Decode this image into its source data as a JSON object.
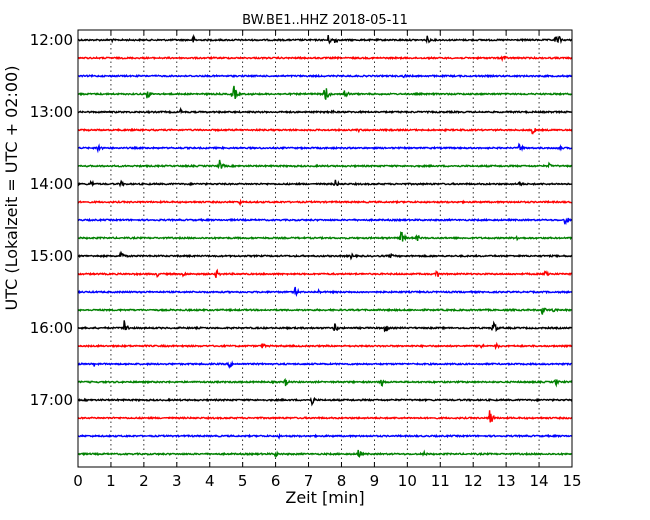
{
  "chart_data": {
    "type": "line",
    "title": "BW.BE1..HHZ 2018-05-11",
    "xlabel": "Zeit  [min]",
    "ylabel": "UTC (Lokalzeit = UTC + 02:00)",
    "xlim": [
      0,
      15
    ],
    "x_ticks": [
      "0",
      "1",
      "2",
      "3",
      "4",
      "5",
      "6",
      "7",
      "8",
      "9",
      "10",
      "11",
      "12",
      "13",
      "14",
      "15"
    ],
    "y_ticks": [
      "12:00",
      "13:00",
      "14:00",
      "15:00",
      "16:00",
      "17:00"
    ],
    "grid": "vertical dotted at each minute",
    "colors": [
      "#000000",
      "#ff0000",
      "#0000ff",
      "#008000"
    ],
    "traces": [
      {
        "start": "12:00",
        "color": "#000000",
        "events": [
          [
            1.0,
            0.25
          ],
          [
            3.5,
            0.45
          ],
          [
            7.6,
            0.55
          ],
          [
            7.8,
            0.5
          ],
          [
            10.6,
            0.45
          ],
          [
            14.5,
            0.5
          ],
          [
            14.6,
            0.45
          ]
        ]
      },
      {
        "start": "12:15",
        "color": "#ff0000",
        "events": [
          [
            12.9,
            0.5
          ]
        ]
      },
      {
        "start": "12:30",
        "color": "#0000ff",
        "events": [
          [
            9.9,
            0.25
          ]
        ]
      },
      {
        "start": "12:45",
        "color": "#008000",
        "events": [
          [
            2.1,
            0.6
          ],
          [
            4.7,
            1.3
          ],
          [
            7.5,
            1.2
          ],
          [
            8.1,
            0.7
          ]
        ]
      },
      {
        "start": "13:00",
        "color": "#000000",
        "events": [
          [
            3.1,
            0.35
          ],
          [
            7.7,
            0.25
          ]
        ]
      },
      {
        "start": "13:15",
        "color": "#ff0000",
        "events": [
          [
            13.8,
            0.5
          ],
          [
            8.5,
            0.25
          ]
        ]
      },
      {
        "start": "13:30",
        "color": "#0000ff",
        "events": [
          [
            0.6,
            0.65
          ],
          [
            13.4,
            0.55
          ],
          [
            14.6,
            0.3
          ]
        ]
      },
      {
        "start": "13:45",
        "color": "#008000",
        "events": [
          [
            4.3,
            0.65
          ],
          [
            14.3,
            0.3
          ]
        ]
      },
      {
        "start": "14:00",
        "color": "#000000",
        "events": [
          [
            0.4,
            0.4
          ],
          [
            1.3,
            0.35
          ],
          [
            7.8,
            0.55
          ],
          [
            13.4,
            0.35
          ]
        ]
      },
      {
        "start": "14:15",
        "color": "#ff0000",
        "events": [
          [
            4.9,
            0.3
          ]
        ]
      },
      {
        "start": "14:30",
        "color": "#0000ff",
        "events": [
          [
            14.8,
            0.6
          ]
        ]
      },
      {
        "start": "14:45",
        "color": "#008000",
        "events": [
          [
            9.8,
            1.0
          ],
          [
            10.3,
            0.4
          ],
          [
            13.3,
            0.35
          ]
        ]
      },
      {
        "start": "15:00",
        "color": "#000000",
        "events": [
          [
            1.3,
            0.55
          ],
          [
            8.3,
            0.35
          ],
          [
            9.5,
            0.3
          ]
        ]
      },
      {
        "start": "15:15",
        "color": "#ff0000",
        "events": [
          [
            2.4,
            0.3
          ],
          [
            3.2,
            0.3
          ],
          [
            4.2,
            0.5
          ],
          [
            10.9,
            0.55
          ],
          [
            14.2,
            0.6
          ]
        ]
      },
      {
        "start": "15:30",
        "color": "#0000ff",
        "events": [
          [
            6.6,
            0.55
          ],
          [
            7.3,
            0.25
          ]
        ]
      },
      {
        "start": "15:45",
        "color": "#008000",
        "events": [
          [
            14.1,
            0.55
          ],
          [
            14.4,
            0.4
          ]
        ]
      },
      {
        "start": "16:00",
        "color": "#000000",
        "events": [
          [
            1.4,
            1.0
          ],
          [
            7.8,
            0.6
          ],
          [
            9.3,
            0.75
          ],
          [
            12.6,
            0.95
          ]
        ]
      },
      {
        "start": "16:15",
        "color": "#ff0000",
        "events": [
          [
            5.6,
            0.35
          ],
          [
            12.2,
            0.5
          ],
          [
            12.7,
            0.35
          ]
        ]
      },
      {
        "start": "16:30",
        "color": "#0000ff",
        "events": [
          [
            0.5,
            0.3
          ],
          [
            4.6,
            0.5
          ]
        ]
      },
      {
        "start": "16:45",
        "color": "#008000",
        "events": [
          [
            6.3,
            0.45
          ],
          [
            9.2,
            0.6
          ],
          [
            14.5,
            0.45
          ]
        ]
      },
      {
        "start": "17:00",
        "color": "#000000",
        "events": [
          [
            7.1,
            0.6
          ]
        ]
      },
      {
        "start": "17:15",
        "color": "#ff0000",
        "events": [
          [
            12.5,
            1.1
          ]
        ]
      },
      {
        "start": "17:30",
        "color": "#0000ff",
        "events": [
          [
            6.1,
            0.2
          ]
        ]
      },
      {
        "start": "17:45",
        "color": "#008000",
        "events": [
          [
            6.0,
            0.35
          ],
          [
            8.5,
            0.75
          ],
          [
            10.5,
            0.3
          ]
        ]
      }
    ]
  }
}
